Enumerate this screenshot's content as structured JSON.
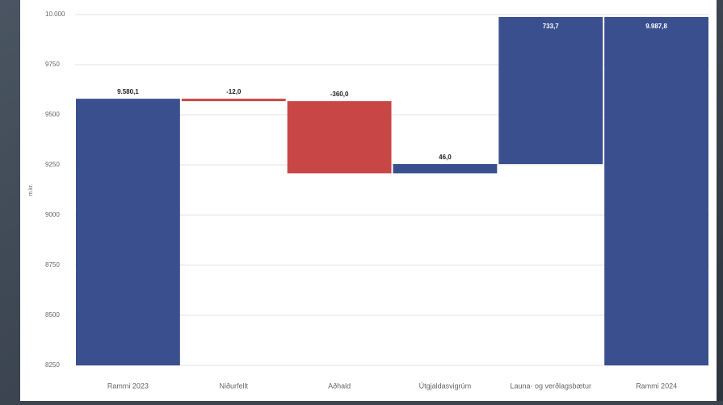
{
  "chart_data": {
    "type": "waterfall",
    "y_label": "m.kr.",
    "categories": [
      "Rammi 2023",
      "Niðurfellt",
      "Aðhald",
      "Útgjaldasvigrúm",
      "Launa- og verðlagsbætur",
      "Rammi 2024"
    ],
    "values": [
      9580.1,
      -12,
      -360,
      46,
      733.7,
      9987.8
    ],
    "value_labels": [
      "9.580,1",
      "-12,0",
      "-360,0",
      "46,0",
      "733,7",
      "9.987,8"
    ],
    "is_total": [
      true,
      false,
      false,
      false,
      false,
      true
    ],
    "color_increase": "#3a4f8e",
    "color_decrease": "#c84646",
    "color_total": "#3a4f8e",
    "ylim": [
      8250,
      10000
    ],
    "yticks": [
      8250,
      8500,
      8750,
      9000,
      9250,
      9500,
      9750,
      {
        "value": 10000,
        "label": "10.000"
      }
    ],
    "grid": true
  }
}
